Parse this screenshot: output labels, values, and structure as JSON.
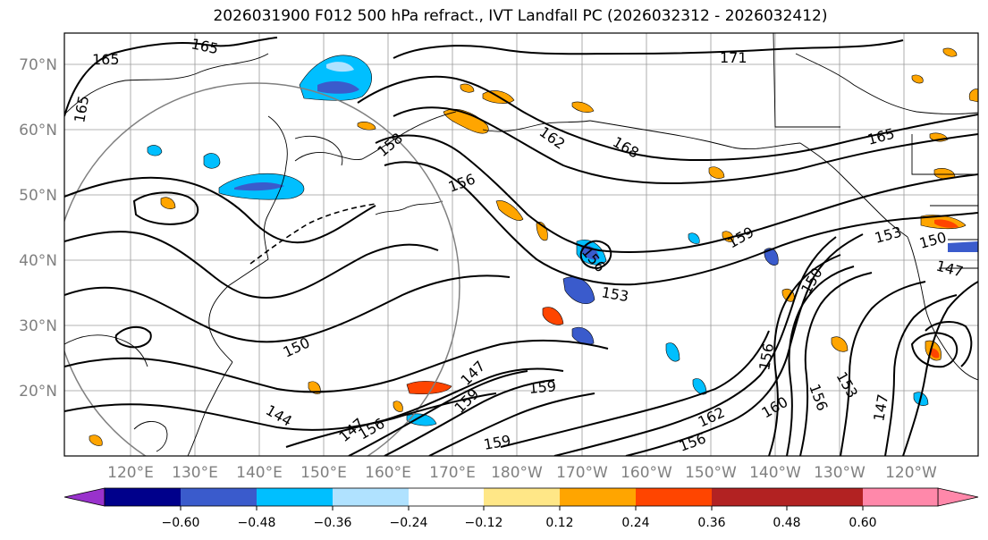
{
  "title": "2026031900 F012 500 hPa refract., IVT Landfall PC (2026032312 - 2026032412)",
  "map": {
    "lat_labels": [
      "70°N",
      "60°N",
      "50°N",
      "40°N",
      "30°N",
      "20°N"
    ],
    "lon_labels": [
      "120°E",
      "130°E",
      "140°E",
      "150°E",
      "160°E",
      "170°E",
      "180°W",
      "170°W",
      "160°W",
      "150°W",
      "140°W",
      "130°W",
      "120°W"
    ],
    "contour_labels": [
      "165",
      "165",
      "165",
      "171",
      "162",
      "168",
      "165",
      "158",
      "156",
      "159",
      "156",
      "153",
      "153",
      "150",
      "147",
      "150",
      "159",
      "159",
      "147",
      "147",
      "156",
      "159",
      "144",
      "156",
      "162",
      "160",
      "156",
      "153",
      "147",
      "156",
      "150"
    ]
  },
  "colorbar": {
    "ticks": [
      "−0.60",
      "−0.48",
      "−0.36",
      "−0.24",
      "−0.12",
      "0.12",
      "0.24",
      "0.36",
      "0.48",
      "0.60"
    ],
    "colors": [
      "#9932CC",
      "#00008B",
      "#3A5BCC",
      "#00BFFF",
      "#B0E2FF",
      "#FFFFFF",
      "#FFE787",
      "#FFA500",
      "#FF4500",
      "#B22222",
      "#FF88AA"
    ]
  }
}
